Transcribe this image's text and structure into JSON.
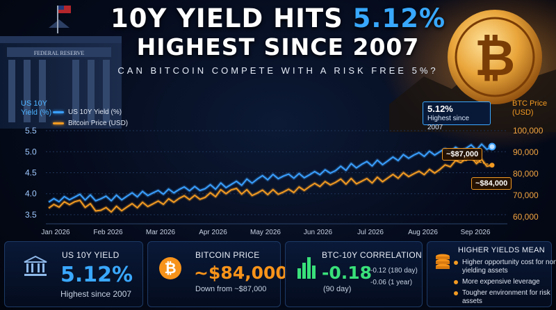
{
  "headline": {
    "line1_prefix": "10Y YIELD HITS",
    "line1_highlight": "5.12%",
    "line2": "HIGHEST SINCE 2007",
    "subtitle": "CAN BITCOIN COMPETE WITH A RISK FREE 5%?"
  },
  "building_text": "FEDERAL RESERVE",
  "colors": {
    "yield": "#3aa0ff",
    "btc": "#f39b22",
    "accent_blue": "#38a8ff",
    "accent_orange": "#f7931a",
    "negative_green": "#39e07a"
  },
  "chart_data": {
    "type": "line",
    "x_tick_labels": [
      "Jan 2026",
      "Feb 2026",
      "Mar 2026",
      "Apr 2026",
      "May 2026",
      "Jun 2026",
      "Jul 2026",
      "Aug 2026",
      "Sep 2026"
    ],
    "x": [
      "Jan 2026",
      "",
      "Feb 2026",
      "",
      "Mar 2026",
      "",
      "Apr 2026",
      "",
      "May 2026",
      "",
      "Jun 2026",
      "",
      "Jul 2026",
      "",
      "Aug 2026",
      "",
      "Sep 2026",
      ""
    ],
    "y_left": {
      "label_line1": "US 10Y",
      "label_line2": "Yield (%)",
      "ticks": [
        "5.5",
        "5.0",
        "4.5",
        "4.0",
        "3.5"
      ],
      "range": [
        3.35,
        5.6
      ]
    },
    "y_right": {
      "label_line1": "BTC Price",
      "label_line2": "(USD)",
      "ticks": [
        "100,000",
        "90,000",
        "80,000",
        "70,000",
        "60,000"
      ],
      "range": [
        58000,
        102000
      ]
    },
    "legend": [
      "US 10Y Yield (%)",
      "Bitcoin Price (USD)"
    ],
    "legend_position": "top-left",
    "grid": true,
    "series": [
      {
        "name": "US 10Y Yield (%)",
        "axis": "left",
        "values": [
          3.8,
          3.92,
          3.88,
          3.94,
          4.02,
          4.1,
          4.12,
          4.22,
          4.35,
          4.42,
          4.45,
          4.55,
          4.7,
          4.78,
          4.92,
          5.0,
          5.08,
          5.12
        ]
      },
      {
        "name": "Bitcoin Price (USD)",
        "axis": "right",
        "values": [
          64000,
          67000,
          63000,
          64500,
          66000,
          68500,
          69000,
          72500,
          71000,
          71500,
          74000,
          76000,
          76500,
          78000,
          80000,
          82000,
          87000,
          84000
        ]
      }
    ],
    "annotations": [
      {
        "value": "5.12%",
        "text": "Highest since 2007",
        "series": "US 10Y Yield (%)"
      },
      {
        "text": "~$87,000",
        "series": "Bitcoin Price (USD)"
      },
      {
        "text": "~$84,000",
        "series": "Bitcoin Price (USD)"
      }
    ]
  },
  "panels": {
    "yield": {
      "label": "US 10Y YIELD",
      "value": "5.12%",
      "sub": "Highest since 2007",
      "icon": "bank-icon"
    },
    "btc": {
      "label": "BITCOIN PRICE",
      "value": "~$84,000",
      "sub": "Down from ~$87,000",
      "icon": "bitcoin-icon"
    },
    "corr": {
      "label": "BTC-10Y CORRELATION",
      "value": "-0.18",
      "sub": "(90 day)",
      "icon": "bar-chart-icon",
      "extra": [
        {
          "value": "-0.12",
          "period": "(180 day)"
        },
        {
          "value": "-0.06",
          "period": "(1 year)"
        }
      ]
    },
    "higher": {
      "label": "HIGHER YIELDS MEAN",
      "icon": "coin-stack-icon",
      "items": [
        "Higher opportunity cost for non yielding assets",
        "More expensive leverage",
        "Tougher environment for risk assets"
      ]
    }
  }
}
